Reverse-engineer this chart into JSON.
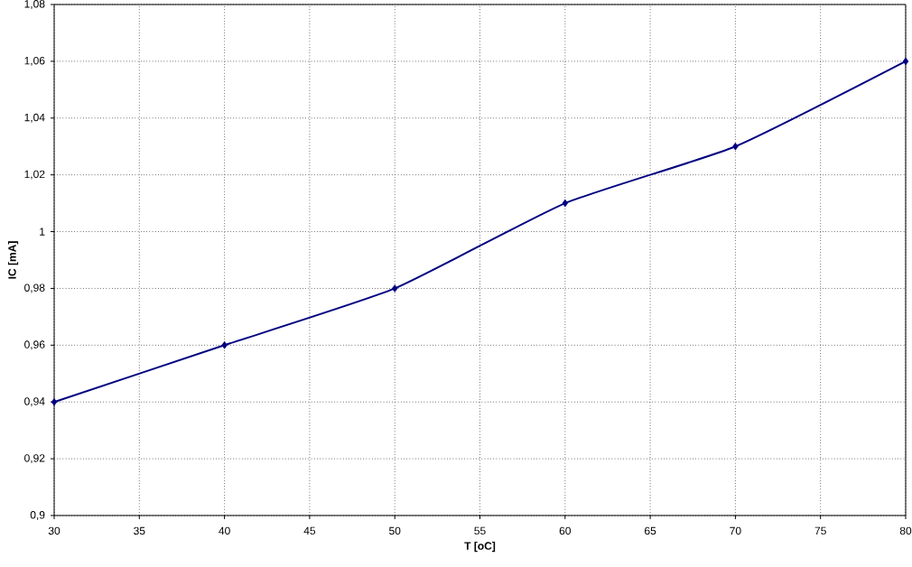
{
  "chart_data": {
    "type": "line",
    "xlabel": "T [oC]",
    "ylabel": "IC [mA]",
    "x": [
      30,
      40,
      50,
      60,
      70,
      80
    ],
    "series": [
      {
        "color": "#000080",
        "values": [
          0.94,
          0.96,
          0.98,
          1.01,
          1.03,
          1.06
        ]
      }
    ],
    "xlim": [
      30,
      80
    ],
    "xticks": [
      30,
      35,
      40,
      45,
      50,
      55,
      60,
      65,
      70,
      75,
      80
    ],
    "ylim": [
      0.9,
      1.08
    ],
    "yticks": [
      {
        "value": 0.9,
        "label": "0,9"
      },
      {
        "value": 0.92,
        "label": "0,92"
      },
      {
        "value": 0.94,
        "label": "0,94"
      },
      {
        "value": 0.96,
        "label": "0,96"
      },
      {
        "value": 0.98,
        "label": "0,98"
      },
      {
        "value": 1,
        "label": "1"
      },
      {
        "value": 1.02,
        "label": "1,02"
      },
      {
        "value": 1.04,
        "label": "1,04"
      },
      {
        "value": 1.06,
        "label": "1,06"
      },
      {
        "value": 1.08,
        "label": "1,08"
      }
    ],
    "grid": true,
    "marker": "diamond",
    "line_style": "solid"
  }
}
